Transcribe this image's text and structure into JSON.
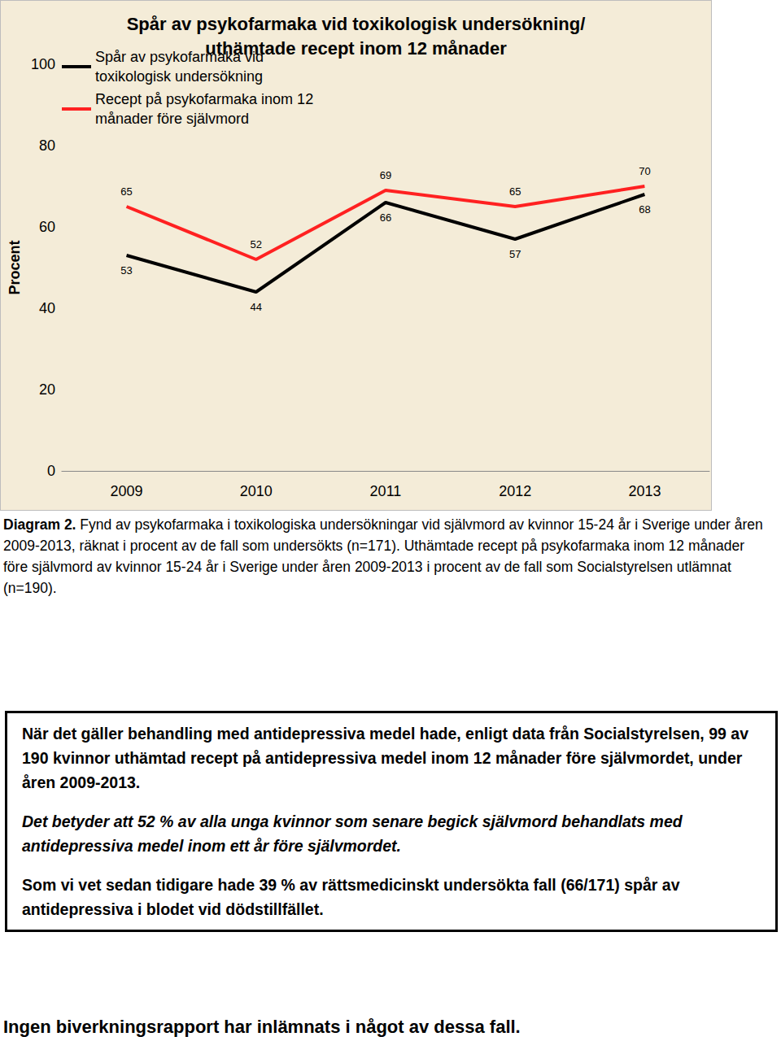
{
  "chart_data": {
    "type": "line",
    "title": "Spår av psykofarmaka vid toxikologisk undersökning/\nuthämtade recept inom 12 månader",
    "y_label": "Procent",
    "categories": [
      "2009",
      "2010",
      "2011",
      "2012",
      "2013"
    ],
    "series": [
      {
        "name": "Spår av psykofarmaka vid toxikologisk undersökning",
        "color": "#000000",
        "values": [
          53,
          44,
          66,
          57,
          68
        ]
      },
      {
        "name": "Recept på psykofarmaka inom 12 månader före självmord",
        "color": "#ff2121",
        "values": [
          65,
          52,
          69,
          65,
          70
        ]
      }
    ],
    "ylim": [
      0,
      100
    ],
    "yticks": [
      0,
      20,
      40,
      60,
      80,
      100
    ],
    "grid": false,
    "legend": "top-left",
    "data_labels": true
  },
  "caption": {
    "label": "Diagram 2.",
    "text": "Fynd av psykofarmaka i toxikologiska undersökningar vid självmord av kvinnor 15-24 år i Sverige under åren 2009-2013, räknat i procent av de fall som undersökts (n=171). Uthämtade recept på psykofarmaka inom 12 månader före självmord av kvinnor 15-24 år i Sverige under åren 2009-2013 i procent av de fall som Socialstyrelsen utlämnat (n=190)."
  },
  "box": {
    "text": "När det gäller behandling med antidepressiva medel hade, enligt data från Socialstyrelsen, 99 av 190 kvinnor uthämtad recept på antidepressiva medel inom 12 månader före självmordet, under åren 2009-2013.",
    "emphasis": "Det betyder att 52 % av alla unga kvinnor som senare begick självmord behandlats med antidepressiva medel inom ett år före självmordet.",
    "note": "Som vi vet sedan tidigare hade 39 % av rättsmedicinskt undersökta fall (66/171) spår av antidepressiva i blodet vid dödstillfället."
  },
  "footer": "Ingen biverkningsrapport har inlämnats i något av dessa fall."
}
